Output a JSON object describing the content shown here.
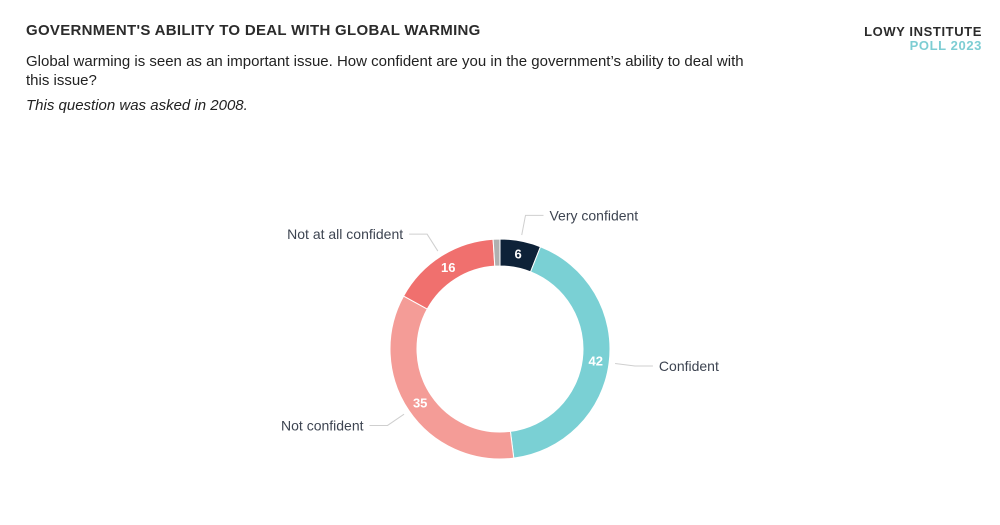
{
  "header": {
    "title": "GOVERNMENT'S ABILITY TO DEAL WITH GLOBAL WARMING",
    "subtitle": "Global warming is seen as an important issue. How confident are you in the government’s ability to deal with this issue?",
    "note": "This question was asked in 2008."
  },
  "brand": {
    "line1": "LOWY INSTITUTE",
    "line2": "POLL 2023"
  },
  "chart_data": {
    "type": "pie",
    "style": "donut",
    "slices": [
      {
        "label": "Very confident",
        "value": 6,
        "value_label": "6",
        "color": "#0e2238"
      },
      {
        "label": "Confident",
        "value": 42,
        "value_label": "42",
        "color": "#7ad0d4"
      },
      {
        "label": "Not confident",
        "value": 35,
        "value_label": "35",
        "color": "#f49c97"
      },
      {
        "label": "Not at all confident",
        "value": 16,
        "value_label": "16",
        "color": "#f0706e"
      },
      {
        "label": "",
        "value": 1,
        "value_label": "",
        "color": "#b0b0b0"
      }
    ]
  }
}
